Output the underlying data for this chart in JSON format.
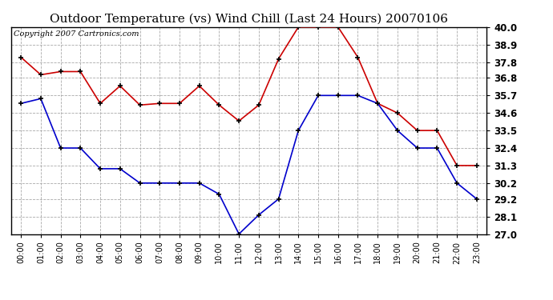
{
  "title": "Outdoor Temperature (vs) Wind Chill (Last 24 Hours) 20070106",
  "copyright": "Copyright 2007 Cartronics.com",
  "hours": [
    "00:00",
    "01:00",
    "02:00",
    "03:00",
    "04:00",
    "05:00",
    "06:00",
    "07:00",
    "08:00",
    "09:00",
    "10:00",
    "11:00",
    "12:00",
    "13:00",
    "14:00",
    "15:00",
    "16:00",
    "17:00",
    "18:00",
    "19:00",
    "20:00",
    "21:00",
    "22:00",
    "23:00"
  ],
  "temp": [
    38.1,
    37.0,
    37.2,
    37.2,
    35.2,
    36.3,
    35.1,
    35.2,
    35.2,
    36.3,
    35.1,
    34.1,
    35.1,
    38.0,
    40.0,
    40.0,
    40.0,
    38.1,
    35.2,
    34.6,
    33.5,
    33.5,
    31.3,
    31.3
  ],
  "wind_chill": [
    35.2,
    35.5,
    32.4,
    32.4,
    31.1,
    31.1,
    30.2,
    30.2,
    30.2,
    30.2,
    29.5,
    27.0,
    28.2,
    29.2,
    33.5,
    35.7,
    35.7,
    35.7,
    35.2,
    33.5,
    32.4,
    32.4,
    30.2,
    29.2
  ],
  "temp_color": "#cc0000",
  "wind_chill_color": "#0000cc",
  "ylim_min": 27.0,
  "ylim_max": 40.0,
  "yticks": [
    27.0,
    28.1,
    29.2,
    30.2,
    31.3,
    32.4,
    33.5,
    34.6,
    35.7,
    36.8,
    37.8,
    38.9,
    40.0
  ],
  "background_color": "#ffffff",
  "grid_color": "#aaaaaa",
  "title_fontsize": 11,
  "copyright_fontsize": 7,
  "tick_fontsize": 8.5,
  "x_tick_fontsize": 7
}
